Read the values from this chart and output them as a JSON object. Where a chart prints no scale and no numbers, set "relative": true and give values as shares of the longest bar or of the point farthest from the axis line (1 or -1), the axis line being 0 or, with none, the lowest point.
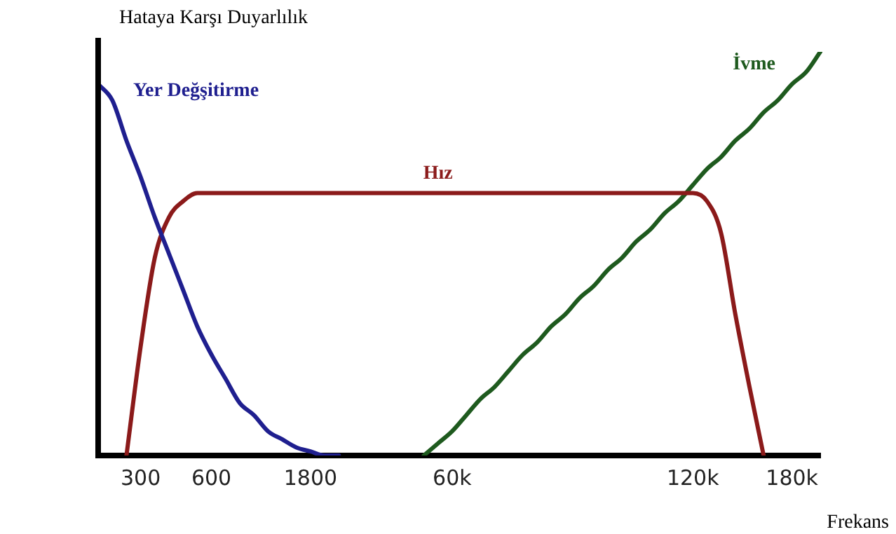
{
  "chart_data": {
    "type": "line",
    "relative": true,
    "ylabel": "Hataya Karşı Duyarlılık",
    "xlabel": "Frekans",
    "categories": [
      null,
      null,
      null,
      "300",
      null,
      null,
      null,
      null,
      "600",
      null,
      null,
      null,
      null,
      null,
      null,
      "1800",
      null,
      null,
      null,
      null,
      null,
      null,
      null,
      null,
      null,
      "60k",
      null,
      null,
      null,
      null,
      null,
      null,
      null,
      null,
      null,
      null,
      null,
      null,
      null,
      null,
      null,
      null,
      "120k",
      null,
      null,
      null,
      null,
      null,
      null,
      "180k",
      null,
      null
    ],
    "series": [
      {
        "name": "Yer Değşitirme",
        "color": "#1f1f8f",
        "values": [
          0.92,
          0.88,
          0.78,
          0.69,
          0.59,
          0.5,
          0.41,
          0.32,
          0.25,
          0.19,
          0.13,
          0.1,
          0.06,
          0.04,
          0.02,
          0.01,
          0,
          0,
          null,
          null,
          null,
          null,
          null,
          null,
          null,
          null,
          null,
          null,
          null,
          null,
          null,
          null,
          null,
          null,
          null,
          null,
          null,
          null,
          null,
          null,
          null,
          null,
          null,
          null,
          null,
          null,
          null,
          null,
          null,
          null,
          null,
          null
        ]
      },
      {
        "name": "Hız",
        "color": "#8b1a1a",
        "values": [
          null,
          null,
          0,
          0.27,
          0.49,
          0.59,
          0.63,
          0.65,
          0.65,
          0.65,
          0.65,
          0.65,
          0.65,
          0.65,
          0.65,
          0.65,
          0.65,
          0.65,
          0.65,
          0.65,
          0.65,
          0.65,
          0.65,
          0.65,
          0.65,
          0.65,
          0.65,
          0.65,
          0.65,
          0.65,
          0.65,
          0.65,
          0.65,
          0.65,
          0.65,
          0.65,
          0.65,
          0.65,
          0.65,
          0.65,
          0.65,
          0.65,
          0.65,
          0.63,
          0.55,
          0.35,
          0.17,
          0,
          null,
          null,
          null,
          null
        ]
      },
      {
        "name": "İvme",
        "color": "#1e5a1e",
        "values": [
          null,
          null,
          null,
          null,
          null,
          null,
          null,
          null,
          null,
          null,
          null,
          null,
          null,
          null,
          null,
          null,
          null,
          null,
          null,
          null,
          null,
          null,
          null,
          0,
          0.03,
          0.06,
          0.1,
          0.14,
          0.17,
          0.21,
          0.25,
          0.28,
          0.32,
          0.35,
          0.39,
          0.42,
          0.46,
          0.49,
          0.53,
          0.56,
          0.6,
          0.63,
          0.67,
          0.71,
          0.74,
          0.78,
          0.81,
          0.85,
          0.88,
          0.92,
          0.95,
          1
        ]
      }
    ],
    "legend": false,
    "grid": false
  }
}
